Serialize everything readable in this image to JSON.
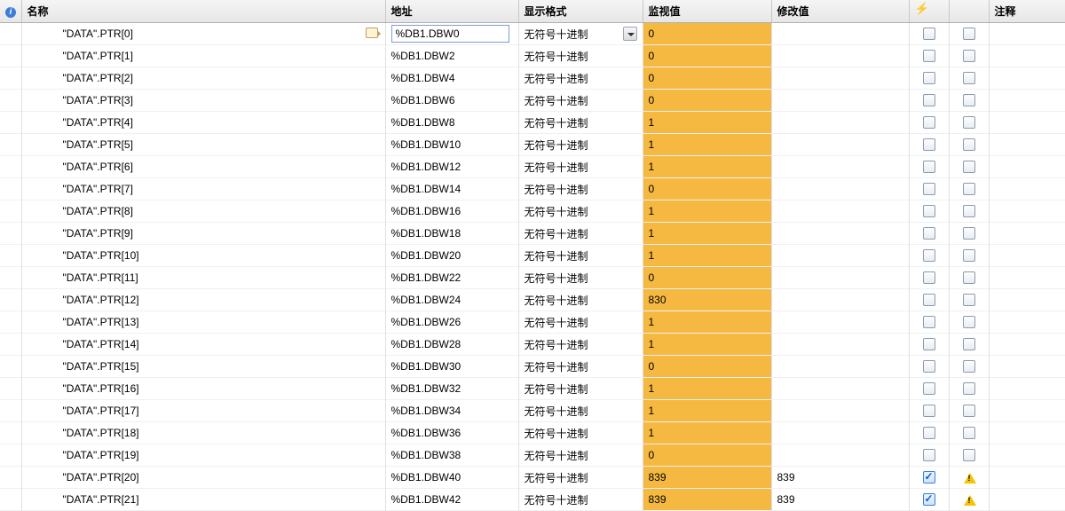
{
  "columns": {
    "info": "",
    "name": "名称",
    "address": "地址",
    "format": "显示格式",
    "monitor": "监视值",
    "modify": "修改值",
    "flash": "",
    "note": "注释"
  },
  "format_default": "无符号十进制",
  "monitor_cell_bg": "#f5b942",
  "rows": [
    {
      "name": "\"DATA\".PTR[0]",
      "address": "%DB1.DBW0",
      "monitor": "0",
      "modify": "",
      "editing": true,
      "checked": false,
      "warn": false
    },
    {
      "name": "\"DATA\".PTR[1]",
      "address": "%DB1.DBW2",
      "monitor": "0",
      "modify": "",
      "editing": false,
      "checked": false,
      "warn": false
    },
    {
      "name": "\"DATA\".PTR[2]",
      "address": "%DB1.DBW4",
      "monitor": "0",
      "modify": "",
      "editing": false,
      "checked": false,
      "warn": false
    },
    {
      "name": "\"DATA\".PTR[3]",
      "address": "%DB1.DBW6",
      "monitor": "0",
      "modify": "",
      "editing": false,
      "checked": false,
      "warn": false
    },
    {
      "name": "\"DATA\".PTR[4]",
      "address": "%DB1.DBW8",
      "monitor": "1",
      "modify": "",
      "editing": false,
      "checked": false,
      "warn": false
    },
    {
      "name": "\"DATA\".PTR[5]",
      "address": "%DB1.DBW10",
      "monitor": "1",
      "modify": "",
      "editing": false,
      "checked": false,
      "warn": false
    },
    {
      "name": "\"DATA\".PTR[6]",
      "address": "%DB1.DBW12",
      "monitor": "1",
      "modify": "",
      "editing": false,
      "checked": false,
      "warn": false
    },
    {
      "name": "\"DATA\".PTR[7]",
      "address": "%DB1.DBW14",
      "monitor": "0",
      "modify": "",
      "editing": false,
      "checked": false,
      "warn": false
    },
    {
      "name": "\"DATA\".PTR[8]",
      "address": "%DB1.DBW16",
      "monitor": "1",
      "modify": "",
      "editing": false,
      "checked": false,
      "warn": false
    },
    {
      "name": "\"DATA\".PTR[9]",
      "address": "%DB1.DBW18",
      "monitor": "1",
      "modify": "",
      "editing": false,
      "checked": false,
      "warn": false
    },
    {
      "name": "\"DATA\".PTR[10]",
      "address": "%DB1.DBW20",
      "monitor": "1",
      "modify": "",
      "editing": false,
      "checked": false,
      "warn": false
    },
    {
      "name": "\"DATA\".PTR[11]",
      "address": "%DB1.DBW22",
      "monitor": "0",
      "modify": "",
      "editing": false,
      "checked": false,
      "warn": false
    },
    {
      "name": "\"DATA\".PTR[12]",
      "address": "%DB1.DBW24",
      "monitor": "830",
      "modify": "",
      "editing": false,
      "checked": false,
      "warn": false
    },
    {
      "name": "\"DATA\".PTR[13]",
      "address": "%DB1.DBW26",
      "monitor": "1",
      "modify": "",
      "editing": false,
      "checked": false,
      "warn": false
    },
    {
      "name": "\"DATA\".PTR[14]",
      "address": "%DB1.DBW28",
      "monitor": "1",
      "modify": "",
      "editing": false,
      "checked": false,
      "warn": false
    },
    {
      "name": "\"DATA\".PTR[15]",
      "address": "%DB1.DBW30",
      "monitor": "0",
      "modify": "",
      "editing": false,
      "checked": false,
      "warn": false
    },
    {
      "name": "\"DATA\".PTR[16]",
      "address": "%DB1.DBW32",
      "monitor": "1",
      "modify": "",
      "editing": false,
      "checked": false,
      "warn": false
    },
    {
      "name": "\"DATA\".PTR[17]",
      "address": "%DB1.DBW34",
      "monitor": "1",
      "modify": "",
      "editing": false,
      "checked": false,
      "warn": false
    },
    {
      "name": "\"DATA\".PTR[18]",
      "address": "%DB1.DBW36",
      "monitor": "1",
      "modify": "",
      "editing": false,
      "checked": false,
      "warn": false
    },
    {
      "name": "\"DATA\".PTR[19]",
      "address": "%DB1.DBW38",
      "monitor": "0",
      "modify": "",
      "editing": false,
      "checked": false,
      "warn": false
    },
    {
      "name": "\"DATA\".PTR[20]",
      "address": "%DB1.DBW40",
      "monitor": "839",
      "modify": "839",
      "editing": false,
      "checked": true,
      "warn": true
    },
    {
      "name": "\"DATA\".PTR[21]",
      "address": "%DB1.DBW42",
      "monitor": "839",
      "modify": "839",
      "editing": false,
      "checked": true,
      "warn": true
    }
  ]
}
